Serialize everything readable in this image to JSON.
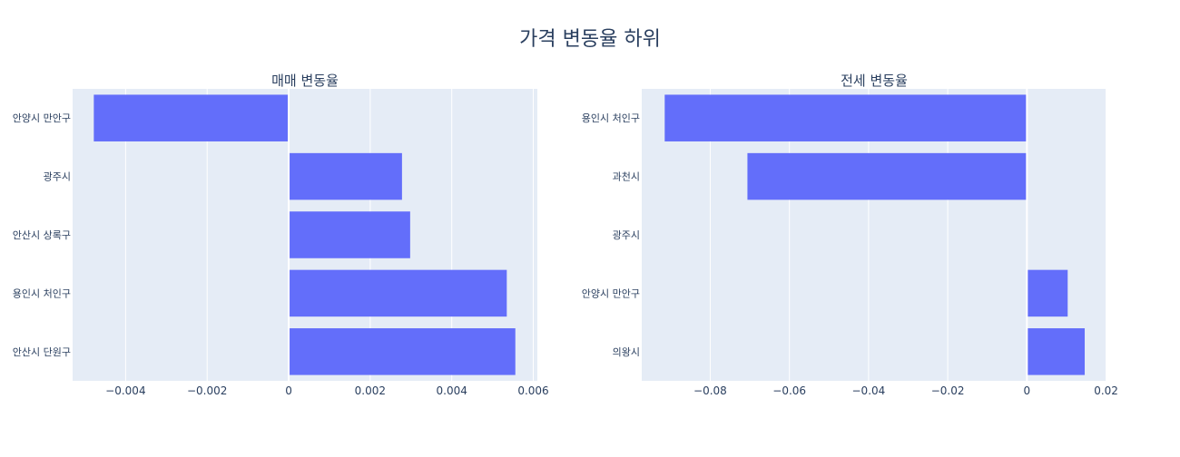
{
  "title": "가격 변동율 하위",
  "colors": {
    "bar": "#636efa",
    "plot_bg": "#e5ecf6",
    "grid": "#ffffff",
    "text": "#2a3f5f"
  },
  "chart_data": [
    {
      "type": "bar",
      "orientation": "horizontal",
      "title": "매매 변동율",
      "categories": [
        "안양시 만안구",
        "광주시",
        "안산시 상록구",
        "용인시 처인구",
        "안산시 단원구"
      ],
      "values": [
        -0.00478,
        0.00278,
        0.00298,
        0.00535,
        0.00556
      ],
      "xlim": [
        -0.0053,
        0.0061
      ],
      "xticks": [
        -0.004,
        -0.002,
        0,
        0.002,
        0.004,
        0.006
      ],
      "xtick_labels": [
        "−0.004",
        "−0.002",
        "0",
        "0.002",
        "0.004",
        "0.006"
      ],
      "grid": true
    },
    {
      "type": "bar",
      "orientation": "horizontal",
      "title": "전세 변동율",
      "categories": [
        "용인시 처인구",
        "과천시",
        "광주시",
        "안양시 만안구",
        "의왕시"
      ],
      "values": [
        -0.0915,
        -0.0706,
        0,
        0.0103,
        0.0146
      ],
      "xlim": [
        -0.0973,
        0.0201
      ],
      "xticks": [
        -0.08,
        -0.06,
        -0.04,
        -0.02,
        0,
        0.02
      ],
      "xtick_labels": [
        "−0.08",
        "−0.06",
        "−0.04",
        "−0.02",
        "0",
        "0.02"
      ],
      "grid": true
    }
  ]
}
